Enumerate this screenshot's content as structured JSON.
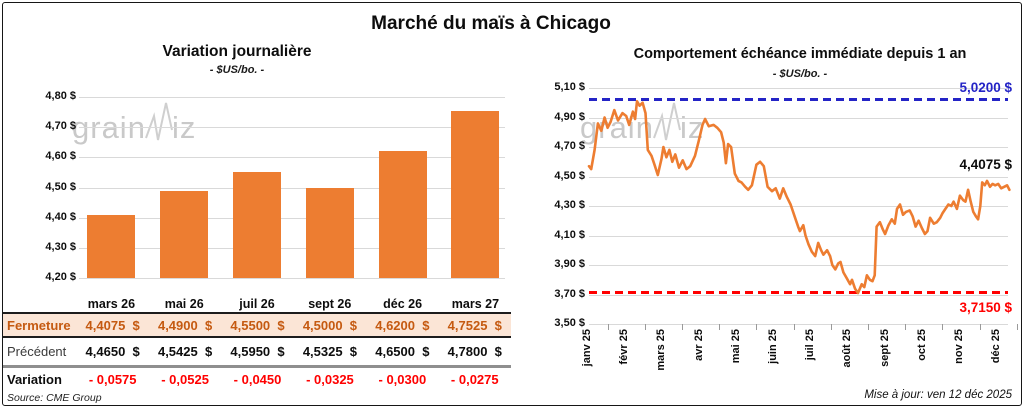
{
  "page": {
    "title": "Marché du maïs à Chicago",
    "source": "Source: CME Group",
    "updated": "Mise à jour: ven 12 déc 2025"
  },
  "watermark": {
    "part1": "grain",
    "part2": "iz"
  },
  "colors": {
    "accent_orange": "#ED7D31",
    "fermeture_bg": "#FBE5D6",
    "fermeture_text": "#C55A11",
    "high_blue": "#2424C6",
    "variation_red": "#FF0000",
    "gridline": "#D9D9D9"
  },
  "table": {
    "columns": [
      "mars 26",
      "mai 26",
      "juil 26",
      "sept 26",
      "déc 26",
      "mars 27"
    ],
    "currency": "$",
    "rows": [
      {
        "label": "Fermeture",
        "class": "row-fermeture",
        "suffix": true,
        "values": [
          "4,4075",
          "4,4900",
          "4,5500",
          "4,5000",
          "4,6200",
          "4,7525"
        ]
      },
      {
        "label": "Précédent",
        "class": "row-precedent",
        "suffix": true,
        "values": [
          "4,4650",
          "4,5425",
          "4,5950",
          "4,5325",
          "4,6500",
          "4,7800"
        ]
      },
      {
        "label": "Variation",
        "class": "row-variation",
        "suffix": false,
        "values": [
          "- 0,0575",
          "- 0,0525",
          "- 0,0450",
          "- 0,0325",
          "- 0,0300",
          "- 0,0275"
        ]
      }
    ]
  },
  "chart_data": [
    {
      "type": "bar",
      "title": "Variation journalière",
      "subtitle": "- $US/bo. -",
      "categories": [
        "mars 26",
        "mai 26",
        "juil 26",
        "sept 26",
        "déc 26",
        "mars 27"
      ],
      "values": [
        4.4075,
        4.49,
        4.55,
        4.5,
        4.62,
        4.7525
      ],
      "ylim": [
        4.2,
        4.8
      ],
      "yticks": [
        "4,80 $",
        "4,70 $",
        "4,60 $",
        "4,50 $",
        "4,40 $",
        "4,30 $",
        "4,20 $"
      ],
      "grid": true,
      "bar_color": "#ED7D31"
    },
    {
      "type": "line",
      "title": "Comportement échéance immédiate depuis 1 an",
      "subtitle": "- $US/bo. -",
      "ylim": [
        3.5,
        5.1
      ],
      "yticks": [
        "5,10 $",
        "4,90 $",
        "4,70 $",
        "4,50 $",
        "4,30 $",
        "4,10 $",
        "3,90 $",
        "3,70 $",
        "3,50 $"
      ],
      "xticks": [
        "janv 25",
        "févr 25",
        "mars 25",
        "avr 25",
        "mai 25",
        "juin 25",
        "juil 25",
        "août 25",
        "sept 25",
        "oct 25",
        "nov 25",
        "déc 25"
      ],
      "grid": true,
      "line_color": "#ED7D31",
      "high_line": {
        "value": 5.02,
        "label": "5,0200 $",
        "color": "#2424C6"
      },
      "low_line": {
        "value": 3.715,
        "label": "3,7150 $",
        "color": "#FF0000"
      },
      "last_value": 4.4075,
      "last_label": "4,4075 $",
      "points": [
        [
          0.0,
          4.57
        ],
        [
          0.06,
          4.55
        ],
        [
          0.15,
          4.68
        ],
        [
          0.24,
          4.86
        ],
        [
          0.33,
          4.81
        ],
        [
          0.42,
          4.9
        ],
        [
          0.5,
          4.83
        ],
        [
          0.58,
          4.87
        ],
        [
          0.68,
          4.95
        ],
        [
          0.78,
          4.88
        ],
        [
          0.9,
          4.93
        ],
        [
          1.0,
          4.91
        ],
        [
          1.08,
          4.85
        ],
        [
          1.18,
          4.94
        ],
        [
          1.24,
          4.89
        ],
        [
          1.29,
          5.01
        ],
        [
          1.36,
          4.98
        ],
        [
          1.44,
          5.0
        ],
        [
          1.52,
          4.93
        ],
        [
          1.58,
          4.68
        ],
        [
          1.68,
          4.64
        ],
        [
          1.76,
          4.58
        ],
        [
          1.85,
          4.51
        ],
        [
          1.95,
          4.62
        ],
        [
          2.0,
          4.7
        ],
        [
          2.08,
          4.63
        ],
        [
          2.16,
          4.68
        ],
        [
          2.24,
          4.6
        ],
        [
          2.32,
          4.65
        ],
        [
          2.42,
          4.56
        ],
        [
          2.52,
          4.61
        ],
        [
          2.62,
          4.55
        ],
        [
          2.72,
          4.57
        ],
        [
          2.85,
          4.64
        ],
        [
          2.95,
          4.74
        ],
        [
          3.05,
          4.85
        ],
        [
          3.12,
          4.89
        ],
        [
          3.22,
          4.84
        ],
        [
          3.35,
          4.85
        ],
        [
          3.45,
          4.83
        ],
        [
          3.55,
          4.8
        ],
        [
          3.62,
          4.73
        ],
        [
          3.68,
          4.59
        ],
        [
          3.74,
          4.72
        ],
        [
          3.82,
          4.7
        ],
        [
          3.92,
          4.52
        ],
        [
          4.02,
          4.47
        ],
        [
          4.1,
          4.46
        ],
        [
          4.2,
          4.43
        ],
        [
          4.28,
          4.41
        ],
        [
          4.38,
          4.44
        ],
        [
          4.5,
          4.58
        ],
        [
          4.6,
          4.6
        ],
        [
          4.7,
          4.57
        ],
        [
          4.8,
          4.43
        ],
        [
          4.92,
          4.4
        ],
        [
          5.02,
          4.42
        ],
        [
          5.13,
          4.35
        ],
        [
          5.22,
          4.42
        ],
        [
          5.32,
          4.36
        ],
        [
          5.42,
          4.31
        ],
        [
          5.54,
          4.22
        ],
        [
          5.62,
          4.16
        ],
        [
          5.67,
          4.13
        ],
        [
          5.76,
          4.17
        ],
        [
          5.82,
          4.1
        ],
        [
          5.9,
          4.04
        ],
        [
          5.99,
          3.99
        ],
        [
          6.08,
          3.96
        ],
        [
          6.16,
          4.05
        ],
        [
          6.24,
          4.0
        ],
        [
          6.3,
          3.97
        ],
        [
          6.4,
          4.0
        ],
        [
          6.48,
          3.96
        ],
        [
          6.54,
          3.9
        ],
        [
          6.62,
          3.87
        ],
        [
          6.7,
          3.91
        ],
        [
          6.76,
          3.92
        ],
        [
          6.84,
          3.85
        ],
        [
          6.93,
          3.81
        ],
        [
          7.02,
          3.77
        ],
        [
          7.07,
          3.8
        ],
        [
          7.15,
          3.74
        ],
        [
          7.23,
          3.71
        ],
        [
          7.33,
          3.77
        ],
        [
          7.4,
          3.75
        ],
        [
          7.47,
          3.83
        ],
        [
          7.55,
          3.8
        ],
        [
          7.62,
          3.79
        ],
        [
          7.68,
          3.83
        ],
        [
          7.73,
          4.16
        ],
        [
          7.82,
          4.19
        ],
        [
          7.9,
          4.14
        ],
        [
          7.96,
          4.11
        ],
        [
          8.05,
          4.17
        ],
        [
          8.14,
          4.21
        ],
        [
          8.22,
          4.18
        ],
        [
          8.28,
          4.28
        ],
        [
          8.36,
          4.31
        ],
        [
          8.44,
          4.24
        ],
        [
          8.52,
          4.26
        ],
        [
          8.62,
          4.27
        ],
        [
          8.7,
          4.23
        ],
        [
          8.78,
          4.16
        ],
        [
          8.86,
          4.2
        ],
        [
          8.95,
          4.15
        ],
        [
          9.03,
          4.11
        ],
        [
          9.1,
          4.13
        ],
        [
          9.17,
          4.22
        ],
        [
          9.27,
          4.18
        ],
        [
          9.35,
          4.19
        ],
        [
          9.44,
          4.22
        ],
        [
          9.5,
          4.25
        ],
        [
          9.58,
          4.28
        ],
        [
          9.66,
          4.31
        ],
        [
          9.74,
          4.3
        ],
        [
          9.8,
          4.33
        ],
        [
          9.89,
          4.28
        ],
        [
          9.97,
          4.37
        ],
        [
          10.06,
          4.34
        ],
        [
          10.12,
          4.33
        ],
        [
          10.19,
          4.41
        ],
        [
          10.26,
          4.33
        ],
        [
          10.33,
          4.26
        ],
        [
          10.4,
          4.23
        ],
        [
          10.46,
          4.21
        ],
        [
          10.52,
          4.3
        ],
        [
          10.57,
          4.46
        ],
        [
          10.64,
          4.44
        ],
        [
          10.7,
          4.47
        ],
        [
          10.78,
          4.43
        ],
        [
          10.85,
          4.45
        ],
        [
          10.92,
          4.44
        ],
        [
          11.0,
          4.45
        ],
        [
          11.08,
          4.42
        ],
        [
          11.16,
          4.43
        ],
        [
          11.24,
          4.44
        ],
        [
          11.3,
          4.41
        ]
      ]
    }
  ]
}
